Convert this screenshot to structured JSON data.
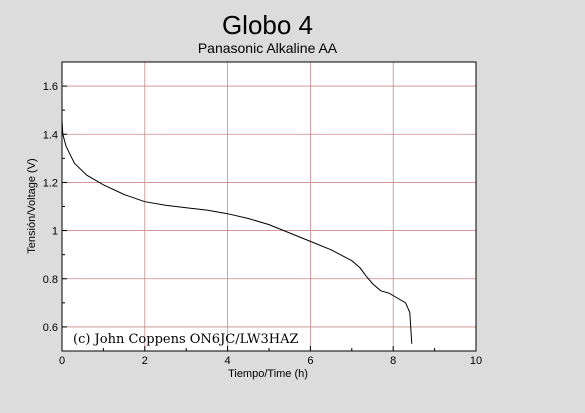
{
  "chart_data": {
    "type": "line",
    "title": "Globo 4",
    "subtitle": "Panasonic Alkaline AA",
    "xlabel": "Tiempo/Time (h)",
    "ylabel": "Tensión/Voltage (V)",
    "xlim": [
      0,
      10
    ],
    "ylim": [
      0.5,
      1.7
    ],
    "xticks": [
      0,
      2,
      4,
      6,
      8,
      10
    ],
    "yticks": [
      0.6,
      0.8,
      1,
      1.2,
      1.4,
      1.6
    ],
    "grid": true,
    "grid_color": "#c98a8a",
    "line_color": "#000000",
    "annotation": "(c) John Coppens ON6JC/LW3HAZ",
    "series": [
      {
        "x": [
          0,
          0.02,
          0.1,
          0.3,
          0.6,
          1.0,
          1.5,
          2.0,
          2.5,
          3.0,
          3.5,
          4.0,
          4.5,
          5.0,
          5.5,
          6.0,
          6.5,
          7.0,
          7.2,
          7.35,
          7.5,
          7.7,
          7.9,
          8.1,
          8.3,
          8.4,
          8.45
        ],
        "y": [
          1.46,
          1.4,
          1.35,
          1.28,
          1.23,
          1.19,
          1.15,
          1.12,
          1.105,
          1.095,
          1.085,
          1.07,
          1.05,
          1.025,
          0.99,
          0.955,
          0.92,
          0.875,
          0.845,
          0.81,
          0.78,
          0.75,
          0.74,
          0.72,
          0.7,
          0.66,
          0.53
        ]
      }
    ]
  }
}
